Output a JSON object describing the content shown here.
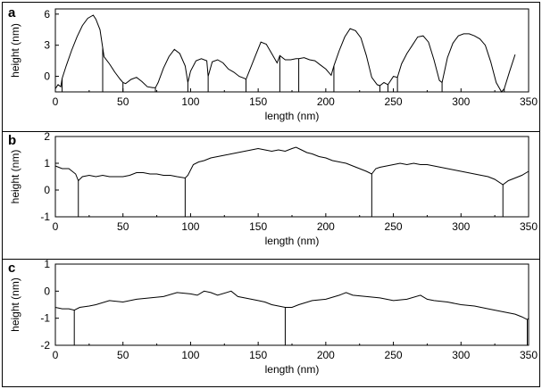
{
  "chart_data": [
    {
      "type": "line",
      "panel_label": "a",
      "xlabel": "length (nm)",
      "ylabel": "height (nm)",
      "xlim": [
        0,
        350
      ],
      "ylim": [
        -1.5,
        6.5
      ],
      "xticks": [
        0,
        50,
        100,
        150,
        200,
        250,
        300,
        350
      ],
      "yticks": [
        -3,
        0,
        3,
        6
      ],
      "x": [
        0,
        2,
        4,
        5,
        8,
        12,
        16,
        20,
        24,
        28,
        30,
        33,
        36,
        40,
        44,
        48,
        50,
        52,
        56,
        60,
        64,
        68,
        72,
        74,
        76,
        80,
        84,
        88,
        92,
        96,
        98,
        100,
        104,
        108,
        112,
        113,
        116,
        120,
        124,
        128,
        132,
        136,
        140,
        141,
        144,
        148,
        152,
        156,
        160,
        164,
        166,
        170,
        174,
        178,
        180,
        184,
        188,
        192,
        196,
        200,
        204,
        206,
        210,
        214,
        218,
        222,
        226,
        230,
        234,
        238,
        240,
        243,
        246,
        250,
        253,
        256,
        260,
        264,
        268,
        272,
        276,
        280,
        284,
        286,
        290,
        294,
        298,
        302,
        306,
        310,
        314,
        318,
        322,
        326,
        330,
        332,
        336,
        340
      ],
      "y": [
        -1.2,
        -0.8,
        -1.0,
        -0.2,
        1.0,
        2.5,
        3.8,
        4.9,
        5.6,
        5.9,
        5.5,
        4.5,
        1.9,
        1.2,
        0.4,
        -0.3,
        -0.6,
        -0.7,
        -0.3,
        -0.1,
        -0.5,
        -1.0,
        -1.1,
        -1.1,
        -0.6,
        0.8,
        1.9,
        2.6,
        2.2,
        1.0,
        -0.6,
        0.5,
        1.5,
        1.7,
        1.5,
        0.0,
        1.4,
        1.6,
        1.3,
        0.7,
        0.4,
        0.0,
        -0.2,
        -0.3,
        0.7,
        2.0,
        3.3,
        3.1,
        2.2,
        1.3,
        2.0,
        1.6,
        1.6,
        1.7,
        1.7,
        1.8,
        1.6,
        1.5,
        1.1,
        0.7,
        0.1,
        1.0,
        2.5,
        3.8,
        4.6,
        4.4,
        3.7,
        2.0,
        -0.1,
        -0.8,
        -0.9,
        -0.6,
        -0.8,
        0.0,
        -0.1,
        1.2,
        2.2,
        3.0,
        3.8,
        3.9,
        3.3,
        1.6,
        -0.4,
        -0.6,
        1.8,
        3.2,
        3.9,
        4.1,
        4.1,
        3.9,
        3.6,
        3.0,
        1.4,
        -0.6,
        -1.5,
        -1.2,
        0.5,
        2.1
      ],
      "drops": [
        5,
        35,
        50,
        74,
        98,
        113,
        141,
        166,
        180,
        206,
        240,
        246,
        253,
        286,
        332
      ]
    },
    {
      "type": "line",
      "panel_label": "b",
      "xlabel": "length (nm)",
      "ylabel": "height (nm)",
      "xlim": [
        0,
        350
      ],
      "ylim": [
        -1,
        2
      ],
      "xticks": [
        0,
        50,
        100,
        150,
        200,
        250,
        300,
        350
      ],
      "yticks": [
        -1,
        0,
        1,
        2
      ],
      "x": [
        0,
        5,
        10,
        15,
        17,
        20,
        25,
        30,
        35,
        40,
        45,
        50,
        55,
        60,
        65,
        70,
        75,
        80,
        85,
        90,
        96,
        98,
        102,
        106,
        110,
        115,
        120,
        125,
        130,
        135,
        140,
        145,
        150,
        155,
        160,
        165,
        170,
        175,
        178,
        182,
        186,
        190,
        195,
        200,
        205,
        210,
        215,
        220,
        225,
        230,
        234,
        237,
        240,
        245,
        250,
        255,
        260,
        265,
        270,
        275,
        280,
        285,
        290,
        295,
        300,
        305,
        310,
        315,
        320,
        325,
        331,
        335,
        340,
        345,
        350
      ],
      "y": [
        0.9,
        0.8,
        0.8,
        0.6,
        0.35,
        0.5,
        0.55,
        0.5,
        0.55,
        0.5,
        0.5,
        0.5,
        0.55,
        0.65,
        0.65,
        0.6,
        0.6,
        0.55,
        0.55,
        0.5,
        0.45,
        0.55,
        0.95,
        1.05,
        1.1,
        1.2,
        1.25,
        1.3,
        1.35,
        1.4,
        1.45,
        1.5,
        1.55,
        1.5,
        1.45,
        1.5,
        1.45,
        1.55,
        1.6,
        1.5,
        1.4,
        1.35,
        1.25,
        1.2,
        1.1,
        1.05,
        1.0,
        0.9,
        0.8,
        0.7,
        0.6,
        0.8,
        0.85,
        0.9,
        0.95,
        1.0,
        0.95,
        1.0,
        0.95,
        0.95,
        0.9,
        0.85,
        0.8,
        0.75,
        0.7,
        0.65,
        0.6,
        0.55,
        0.5,
        0.4,
        0.2,
        0.35,
        0.45,
        0.55,
        0.7
      ],
      "drops": [
        17,
        96,
        234,
        331
      ]
    },
    {
      "type": "line",
      "panel_label": "c",
      "xlabel": "length (nm)",
      "ylabel": "height (nm)",
      "xlim": [
        0,
        350
      ],
      "ylim": [
        -2,
        1
      ],
      "xticks": [
        0,
        50,
        100,
        150,
        200,
        250,
        300,
        350
      ],
      "yticks": [
        -2,
        -1,
        0,
        1
      ],
      "x": [
        0,
        5,
        10,
        14,
        18,
        25,
        30,
        40,
        50,
        60,
        70,
        80,
        90,
        100,
        105,
        110,
        115,
        120,
        130,
        135,
        140,
        145,
        150,
        155,
        160,
        165,
        170,
        175,
        180,
        190,
        200,
        210,
        215,
        220,
        230,
        240,
        250,
        260,
        270,
        275,
        280,
        290,
        300,
        310,
        320,
        330,
        340,
        345,
        349,
        350
      ],
      "y": [
        -0.6,
        -0.65,
        -0.65,
        -0.7,
        -0.6,
        -0.55,
        -0.5,
        -0.35,
        -0.4,
        -0.3,
        -0.25,
        -0.2,
        -0.05,
        -0.1,
        -0.15,
        0.0,
        -0.05,
        -0.15,
        0.0,
        -0.2,
        -0.25,
        -0.3,
        -0.35,
        -0.4,
        -0.5,
        -0.55,
        -0.6,
        -0.6,
        -0.5,
        -0.35,
        -0.3,
        -0.15,
        -0.05,
        -0.15,
        -0.2,
        -0.25,
        -0.35,
        -0.3,
        -0.15,
        -0.3,
        -0.35,
        -0.4,
        -0.5,
        -0.55,
        -0.65,
        -0.75,
        -0.85,
        -0.95,
        -1.05,
        -1.0
      ],
      "drops": [
        14,
        170,
        349
      ]
    }
  ]
}
